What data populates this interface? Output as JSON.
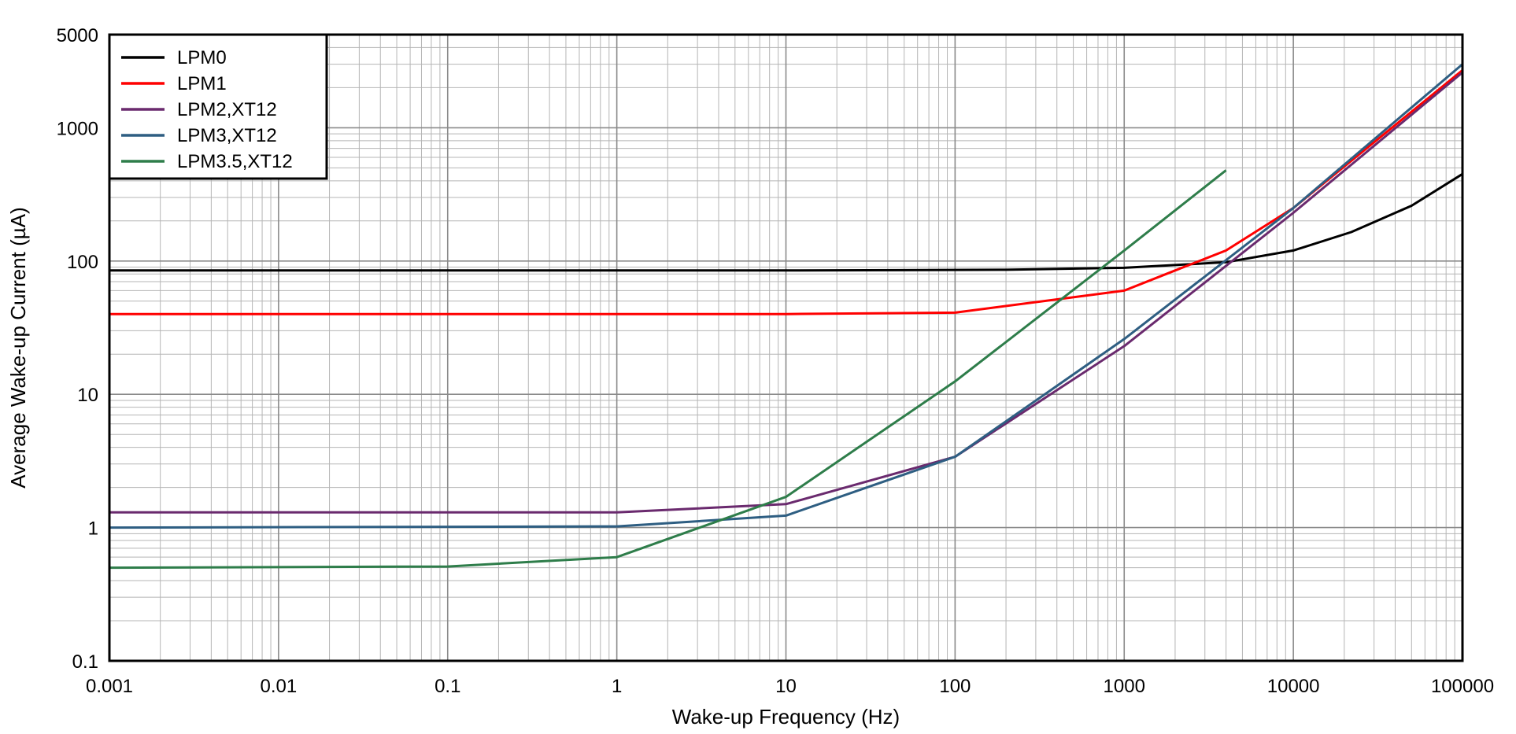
{
  "chart_data": {
    "type": "line",
    "xlabel": "Wake-up Frequency (Hz)",
    "ylabel": "Average Wake-up Current (µA)",
    "x_scale": "log",
    "y_scale": "log",
    "xlim": [
      0.001,
      100000
    ],
    "ylim": [
      0.1,
      5000
    ],
    "x_ticks": [
      {
        "v": 0.001,
        "label": "0.001"
      },
      {
        "v": 0.01,
        "label": "0.01"
      },
      {
        "v": 0.1,
        "label": "0.1"
      },
      {
        "v": 1,
        "label": "1"
      },
      {
        "v": 10,
        "label": "10"
      },
      {
        "v": 100,
        "label": "100"
      },
      {
        "v": 1000,
        "label": "1000"
      },
      {
        "v": 10000,
        "label": "10000"
      },
      {
        "v": 100000,
        "label": "100000"
      }
    ],
    "y_ticks": [
      {
        "v": 0.1,
        "label": "0.1"
      },
      {
        "v": 1,
        "label": "1"
      },
      {
        "v": 10,
        "label": "10"
      },
      {
        "v": 100,
        "label": "100"
      },
      {
        "v": 1000,
        "label": "1000"
      },
      {
        "v": 5000,
        "label": "5000"
      }
    ],
    "grid": true,
    "legend_position": "top-left",
    "series": [
      {
        "name": "LPM0",
        "color": "#000000",
        "x": [
          0.001,
          10,
          200,
          1000,
          4000,
          10000,
          22000,
          50000,
          100000
        ],
        "y": [
          85,
          85,
          86,
          89,
          98,
          120,
          165,
          260,
          450
        ]
      },
      {
        "name": "LPM1",
        "color": "#ff0000",
        "x": [
          0.001,
          10,
          100,
          1000,
          2000,
          4000,
          10000,
          100000
        ],
        "y": [
          40,
          40,
          41,
          60,
          85,
          120,
          250,
          2700
        ]
      },
      {
        "name": "LPM2,XT12",
        "color": "#6a2a6e",
        "x": [
          0.001,
          1,
          10,
          100,
          1000,
          10000,
          100000
        ],
        "y": [
          1.3,
          1.3,
          1.5,
          3.4,
          23,
          230,
          2600
        ]
      },
      {
        "name": "LPM3,XT12",
        "color": "#2e5e82",
        "x": [
          0.001,
          1,
          10,
          100,
          1000,
          10000,
          100000
        ],
        "y": [
          1.0,
          1.02,
          1.23,
          3.4,
          26,
          250,
          3000
        ]
      },
      {
        "name": "LPM3.5,XT12",
        "color": "#2e7d4a",
        "x": [
          0.001,
          0.1,
          1,
          10,
          100,
          1000,
          4000
        ],
        "y": [
          0.5,
          0.51,
          0.6,
          1.7,
          12.5,
          120,
          480
        ]
      }
    ]
  }
}
